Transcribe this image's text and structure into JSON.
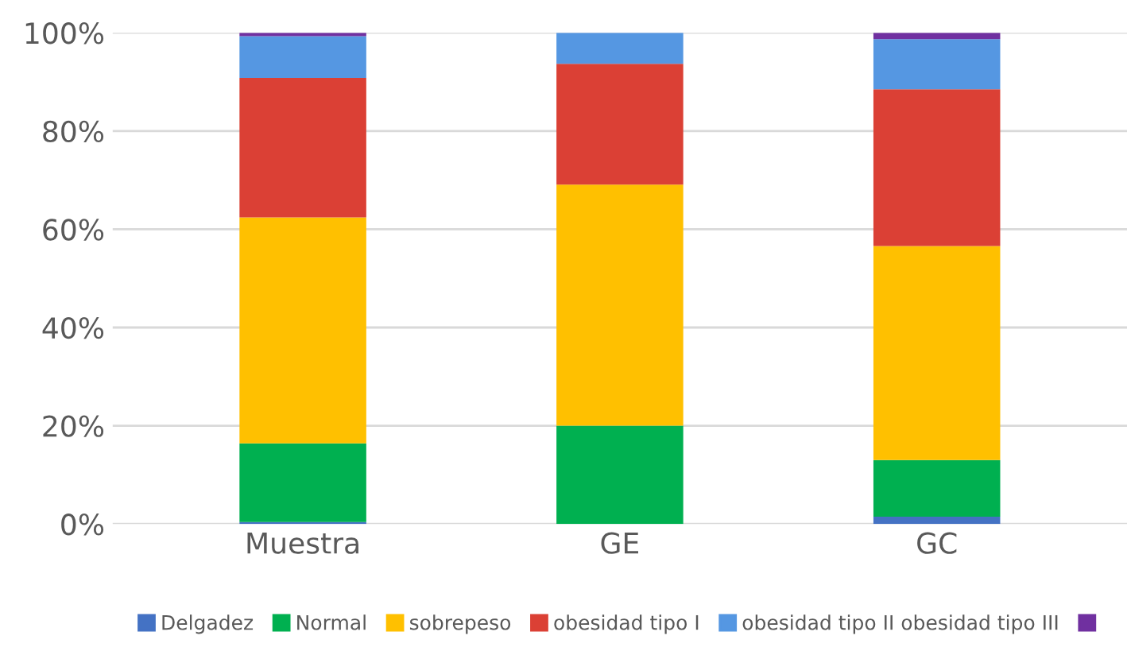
{
  "chart_data": {
    "type": "bar",
    "stacked": true,
    "categories": [
      "Muestra",
      "GE",
      "GC"
    ],
    "series": [
      {
        "name": "Delgadez",
        "color": "#4472c4",
        "values": [
          0.4,
          0,
          1.5
        ]
      },
      {
        "name": "Normal",
        "color": "#00b050",
        "values": [
          16.0,
          20.0,
          11.5
        ]
      },
      {
        "name": "sobrepeso",
        "color": "#ffc000",
        "values": [
          46.0,
          49.1,
          43.6
        ]
      },
      {
        "name": "obesidad tipo I",
        "color": "#db4035",
        "values": [
          28.4,
          24.6,
          31.9
        ]
      },
      {
        "name": "obesidad tipo II obesidad tipo III",
        "color": "#5597e2",
        "values": [
          8.5,
          6.3,
          10.2
        ]
      },
      {
        "color": "#7030a0",
        "values": [
          0.7,
          0,
          1.3
        ]
      }
    ],
    "ylim": [
      0,
      100
    ],
    "yticks": [
      {
        "value": 0,
        "label": "0%"
      },
      {
        "value": 20,
        "label": "20%"
      },
      {
        "value": 40,
        "label": "40%"
      },
      {
        "value": 60,
        "label": "60%"
      },
      {
        "value": 80,
        "label": "80%"
      },
      {
        "value": 100,
        "label": "100%"
      }
    ],
    "grid": "y",
    "legend": "bottom"
  }
}
